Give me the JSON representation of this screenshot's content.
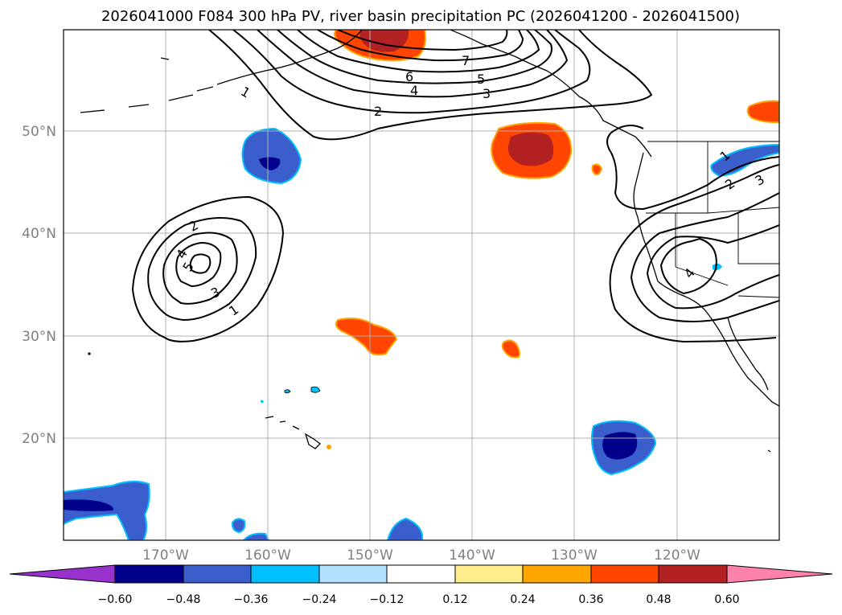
{
  "title": "2026041000 F084 300 hPa PV, river basin precipitation PC (2026041200 - 2026041500)",
  "latitude_labels": [
    "50°N",
    "40°N",
    "30°N",
    "20°N"
  ],
  "longitude_labels": [
    "170°W",
    "160°W",
    "150°W",
    "140°W",
    "130°W",
    "120°W"
  ],
  "colorbar": {
    "ticks": [
      "−0.60",
      "−0.48",
      "−0.36",
      "−0.24",
      "−0.12",
      "0.12",
      "0.24",
      "0.36",
      "0.48",
      "0.60"
    ],
    "colors": [
      "#9932cc",
      "#00008b",
      "#3a5fcd",
      "#00bfff",
      "#b0e2ff",
      "#ffffff",
      "#ffec8b",
      "#ffa500",
      "#ff4500",
      "#b22222",
      "#ff82ab"
    ]
  },
  "pv_contour_labels": {
    "north_trough": [
      "1",
      "2",
      "3",
      "4",
      "5",
      "6",
      "7"
    ],
    "central_pacific_low": [
      "1",
      "2",
      "3",
      "4",
      "5"
    ],
    "west_coast_low": [
      "1",
      "2",
      "3",
      "4"
    ]
  }
}
